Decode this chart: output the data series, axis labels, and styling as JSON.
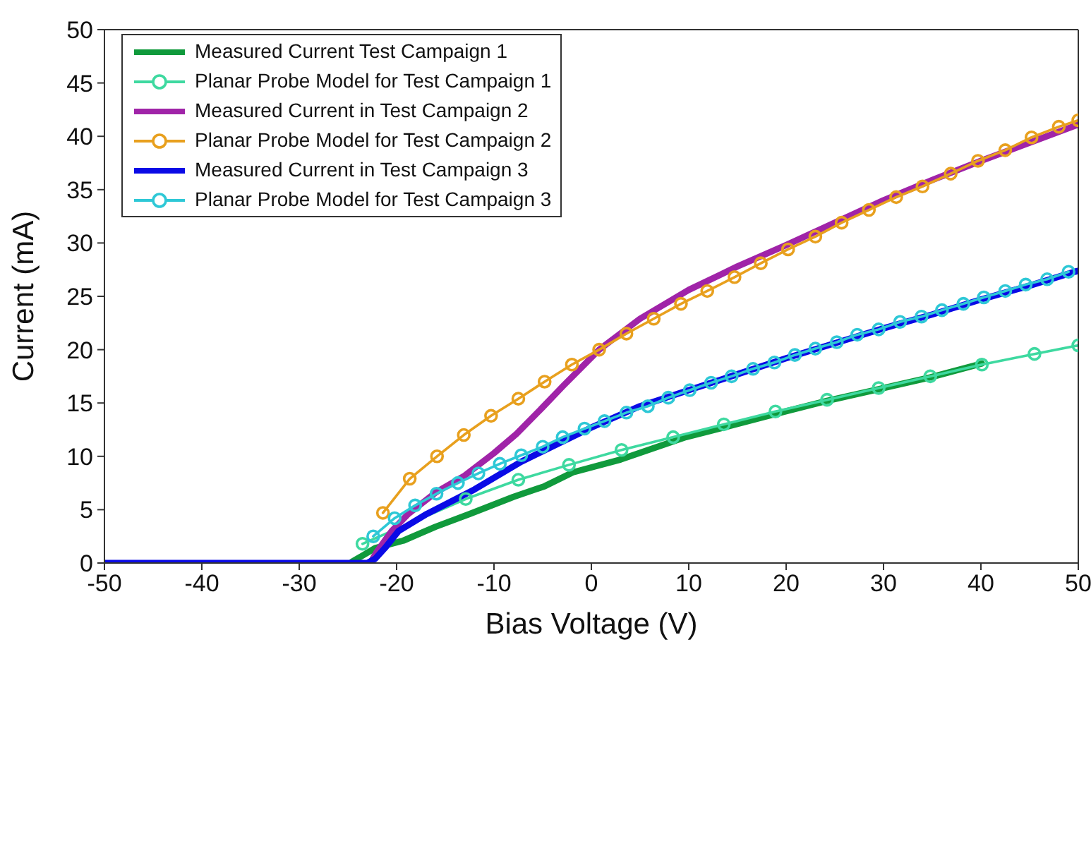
{
  "chart_data": {
    "type": "line",
    "xlabel": "Bias Voltage (V)",
    "ylabel": "Current (mA)",
    "xlim": [
      -50,
      50
    ],
    "xticks": [
      -50,
      -40,
      -30,
      -20,
      -10,
      0,
      10,
      20,
      30,
      40,
      50
    ],
    "ylim": [
      0,
      50
    ],
    "yticks": [
      0,
      5,
      10,
      15,
      20,
      25,
      30,
      35,
      40,
      45,
      50
    ],
    "grid": false,
    "legend": "top left",
    "line_style": "solid",
    "series": [
      {
        "name": "Measured Current Test Campaign 1",
        "color": "#109a3c",
        "marker": "none",
        "x": [
          -24.6,
          -22.2,
          -19.3,
          -16,
          -12.5,
          -8,
          -4.8,
          -1.9,
          3.0,
          9.7,
          13.6,
          19,
          24.2,
          29.5,
          34.8,
          40.1
        ],
        "values": [
          0.1,
          1.4,
          2.1,
          3.4,
          4.6,
          6.2,
          7.2,
          8.5,
          9.7,
          11.8,
          12.7,
          14.0,
          15.2,
          16.3,
          17.4,
          18.7
        ]
      },
      {
        "name": "Planar Probe Model for Test Campaign 1",
        "color": "#3ed9a0",
        "marker": "circle",
        "x": [
          -23.5,
          -12.9,
          -7.5,
          -2.3,
          3.1,
          8.4,
          13.6,
          18.9,
          24.2,
          29.5,
          34.8,
          40.1,
          45.5,
          50
        ],
        "values": [
          1.8,
          6.0,
          7.8,
          9.2,
          10.6,
          11.8,
          13.0,
          14.2,
          15.3,
          16.4,
          17.5,
          18.6,
          19.6,
          20.4
        ]
      },
      {
        "name": "Measured Current in Test Campaign 2",
        "color": "#a024a8",
        "marker": "none",
        "x": [
          -22.7,
          -22,
          -20.5,
          -18.8,
          -16,
          -13,
          -10,
          -7.7,
          -5,
          -2.9,
          0.8,
          5,
          10,
          15,
          20,
          25,
          30,
          35,
          40,
          45,
          50
        ],
        "values": [
          0,
          1.1,
          3.0,
          4.6,
          6.6,
          8.2,
          10.3,
          12.1,
          14.6,
          16.6,
          20.0,
          22.9,
          25.6,
          27.8,
          29.8,
          31.9,
          34.0,
          35.9,
          37.7,
          39.4,
          41.1
        ]
      },
      {
        "name": "Planar Probe Model for Test Campaign 2",
        "color": "#e8a01e",
        "marker": "circle",
        "x": [
          -21.4,
          -18.65,
          -15.85,
          -13.1,
          -10.3,
          -7.5,
          -4.8,
          -2.0,
          0.8,
          3.6,
          6.4,
          9.2,
          11.9,
          14.7,
          17.4,
          20.2,
          23.0,
          25.7,
          28.5,
          31.3,
          34.0,
          36.9,
          39.7,
          42.5,
          45.2,
          48.0,
          50
        ],
        "values": [
          4.7,
          7.9,
          10.0,
          12.0,
          13.8,
          15.4,
          17.0,
          18.6,
          20.0,
          21.5,
          22.9,
          24.3,
          25.5,
          26.8,
          28.1,
          29.4,
          30.6,
          31.9,
          33.1,
          34.3,
          35.3,
          36.5,
          37.7,
          38.7,
          39.9,
          40.9,
          41.5
        ]
      },
      {
        "name": "Measured Current in Test Campaign 3",
        "color": "#0a0ae6",
        "marker": "none",
        "x": [
          -50,
          -40,
          -30,
          -24,
          -23,
          -22.2,
          -21.2,
          -19.8,
          -16.9,
          -12,
          -7.2,
          0,
          5,
          10,
          15,
          20,
          25,
          30,
          35,
          40,
          45,
          50
        ],
        "values": [
          0,
          0,
          0,
          0,
          0,
          0.4,
          1.4,
          3.0,
          4.6,
          6.9,
          9.5,
          12.7,
          14.7,
          16.2,
          17.7,
          19.2,
          20.6,
          22.0,
          23.3,
          24.7,
          26.0,
          27.4
        ]
      },
      {
        "name": "Planar Probe Model for Test Campaign 3",
        "color": "#2ec8d6",
        "marker": "circle",
        "x": [
          -22.4,
          -20.2,
          -18.1,
          -15.9,
          -13.7,
          -11.6,
          -9.4,
          -7.2,
          -5.0,
          -2.95,
          -0.7,
          1.35,
          3.6,
          5.8,
          7.9,
          10.1,
          12.3,
          14.4,
          16.6,
          18.8,
          20.9,
          23.0,
          25.2,
          27.3,
          29.5,
          31.7,
          33.9,
          36.0,
          38.2,
          40.3,
          42.5,
          44.6,
          46.8,
          49.0
        ],
        "values": [
          2.5,
          4.2,
          5.4,
          6.5,
          7.5,
          8.4,
          9.3,
          10.1,
          10.9,
          11.8,
          12.6,
          13.3,
          14.1,
          14.7,
          15.5,
          16.2,
          16.9,
          17.5,
          18.2,
          18.8,
          19.5,
          20.1,
          20.7,
          21.4,
          21.9,
          22.6,
          23.1,
          23.7,
          24.3,
          24.9,
          25.5,
          26.1,
          26.6,
          27.3
        ]
      }
    ]
  }
}
